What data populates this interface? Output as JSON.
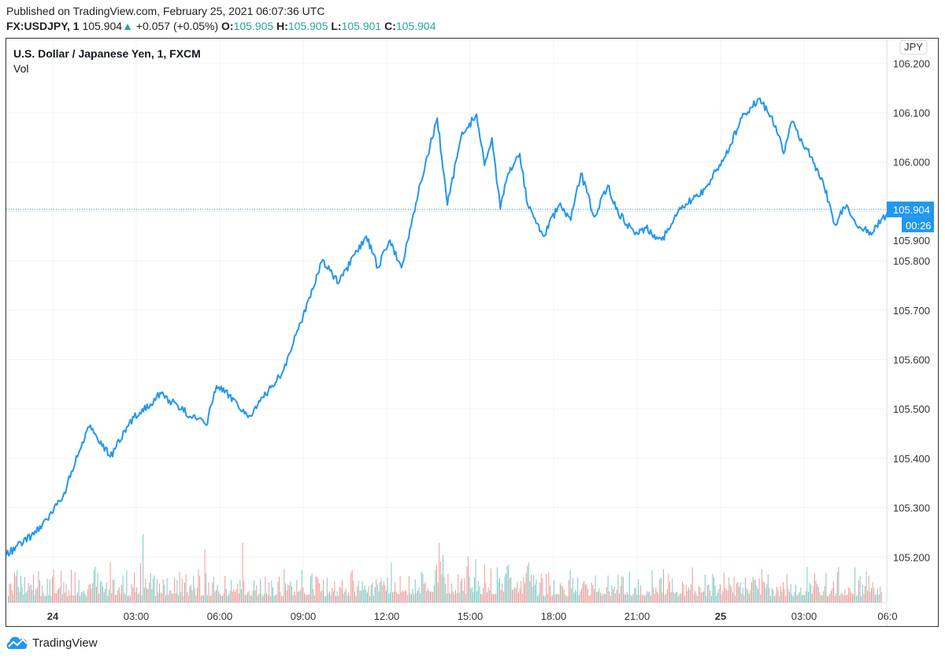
{
  "header": {
    "published": "Published on TradingView.com, February 25, 2021 06:07:36 UTC",
    "symbol": "FX:USDJPY, 1",
    "last": "105.904",
    "change": "+0.057 (+0.05%)",
    "open_label": "O:",
    "open": "105.905",
    "high_label": "H:",
    "high": "105.905",
    "low_label": "L:",
    "low": "105.901",
    "close_label": "C:",
    "close": "105.904",
    "direction_icon": "triangle-up-icon"
  },
  "legend": {
    "title": "U.S. Dollar / Japanese Yen, 1, FXCM",
    "volume": "Vol"
  },
  "currency_badge": "JPY",
  "last_price_label": "105.904",
  "countdown": "00:26",
  "brand": "TradingView",
  "colors": {
    "line": "#2196f3",
    "up": "#26a69a",
    "down": "#ef5350",
    "grid": "#f0f3fa"
  },
  "chart_data": {
    "type": "line",
    "ylim": [
      105.15,
      106.2
    ],
    "y_ticks": [
      "106.200",
      "106.100",
      "106.000",
      "105.900",
      "105.800",
      "105.700",
      "105.600",
      "105.500",
      "105.400",
      "105.300",
      "105.200"
    ],
    "x_ticks": [
      {
        "t": "2021-02-24T00:00",
        "label": "24",
        "bold": true
      },
      {
        "t": "2021-02-24T03:00",
        "label": "03:00"
      },
      {
        "t": "2021-02-24T06:00",
        "label": "06:00"
      },
      {
        "t": "2021-02-24T09:00",
        "label": "09:00"
      },
      {
        "t": "2021-02-24T12:00",
        "label": "12:00"
      },
      {
        "t": "2021-02-24T15:00",
        "label": "15:00"
      },
      {
        "t": "2021-02-24T18:00",
        "label": "18:00"
      },
      {
        "t": "2021-02-24T21:00",
        "label": "21:00"
      },
      {
        "t": "2021-02-25T00:00",
        "label": "25",
        "bold": true
      },
      {
        "t": "2021-02-25T03:00",
        "label": "03:00"
      },
      {
        "t": "2021-02-25T06:00",
        "label": "06:0"
      }
    ],
    "series": [
      {
        "values": [
          [
            "2021-02-23T22:20",
            105.204
          ],
          [
            "2021-02-23T23:14",
            105.244
          ],
          [
            "2021-02-23T23:48",
            105.276
          ],
          [
            "2021-02-24T00:22",
            105.323
          ],
          [
            "2021-02-24T00:56",
            105.411
          ],
          [
            "2021-02-24T01:21",
            105.467
          ],
          [
            "2021-02-24T02:04",
            105.403
          ],
          [
            "2021-02-24T02:55",
            105.483
          ],
          [
            "2021-02-24T03:54",
            105.531
          ],
          [
            "2021-02-24T04:37",
            105.499
          ],
          [
            "2021-02-24T05:31",
            105.467
          ],
          [
            "2021-02-24T05:53",
            105.547
          ],
          [
            "2021-02-24T06:36",
            105.515
          ],
          [
            "2021-02-24T07:01",
            105.483
          ],
          [
            "2021-02-24T07:35",
            105.523
          ],
          [
            "2021-02-24T08:18",
            105.579
          ],
          [
            "2021-02-24T09:00",
            105.69
          ],
          [
            "2021-02-24T09:42",
            105.802
          ],
          [
            "2021-02-24T10:16",
            105.754
          ],
          [
            "2021-02-24T11:16",
            105.85
          ],
          [
            "2021-02-24T11:41",
            105.786
          ],
          [
            "2021-02-24T12:07",
            105.842
          ],
          [
            "2021-02-24T12:32",
            105.786
          ],
          [
            "2021-02-24T12:58",
            105.897
          ],
          [
            "2021-02-24T13:23",
            105.993
          ],
          [
            "2021-02-24T13:49",
            106.089
          ],
          [
            "2021-02-24T14:11",
            105.913
          ],
          [
            "2021-02-24T14:40",
            106.049
          ],
          [
            "2021-02-24T15:14",
            106.097
          ],
          [
            "2021-02-24T15:31",
            105.993
          ],
          [
            "2021-02-24T15:47",
            106.049
          ],
          [
            "2021-02-24T16:05",
            105.905
          ],
          [
            "2021-02-24T16:22",
            105.977
          ],
          [
            "2021-02-24T16:47",
            106.017
          ],
          [
            "2021-02-24T17:04",
            105.913
          ],
          [
            "2021-02-24T17:38",
            105.85
          ],
          [
            "2021-02-24T18:12",
            105.913
          ],
          [
            "2021-02-24T18:37",
            105.882
          ],
          [
            "2021-02-24T18:59",
            105.977
          ],
          [
            "2021-02-24T19:28",
            105.889
          ],
          [
            "2021-02-24T19:57",
            105.953
          ],
          [
            "2021-02-24T20:19",
            105.897
          ],
          [
            "2021-02-24T20:53",
            105.858
          ],
          [
            "2021-02-24T21:19",
            105.866
          ],
          [
            "2021-02-24T21:53",
            105.842
          ],
          [
            "2021-02-24T22:35",
            105.905
          ],
          [
            "2021-02-24T23:26",
            105.945
          ],
          [
            "2021-02-25T00:08",
            106.009
          ],
          [
            "2021-02-25T00:51",
            106.097
          ],
          [
            "2021-02-25T01:25",
            106.129
          ],
          [
            "2021-02-25T01:59",
            106.073
          ],
          [
            "2021-02-25T02:16",
            106.017
          ],
          [
            "2021-02-25T02:33",
            106.081
          ],
          [
            "2021-02-25T03:07",
            106.025
          ],
          [
            "2021-02-25T03:41",
            105.961
          ],
          [
            "2021-02-25T04:06",
            105.874
          ],
          [
            "2021-02-25T04:32",
            105.913
          ],
          [
            "2021-02-25T04:57",
            105.866
          ],
          [
            "2021-02-25T05:23",
            105.858
          ],
          [
            "2021-02-25T06:07",
            105.904
          ]
        ]
      }
    ],
    "last_value": 105.904,
    "grid": true
  }
}
